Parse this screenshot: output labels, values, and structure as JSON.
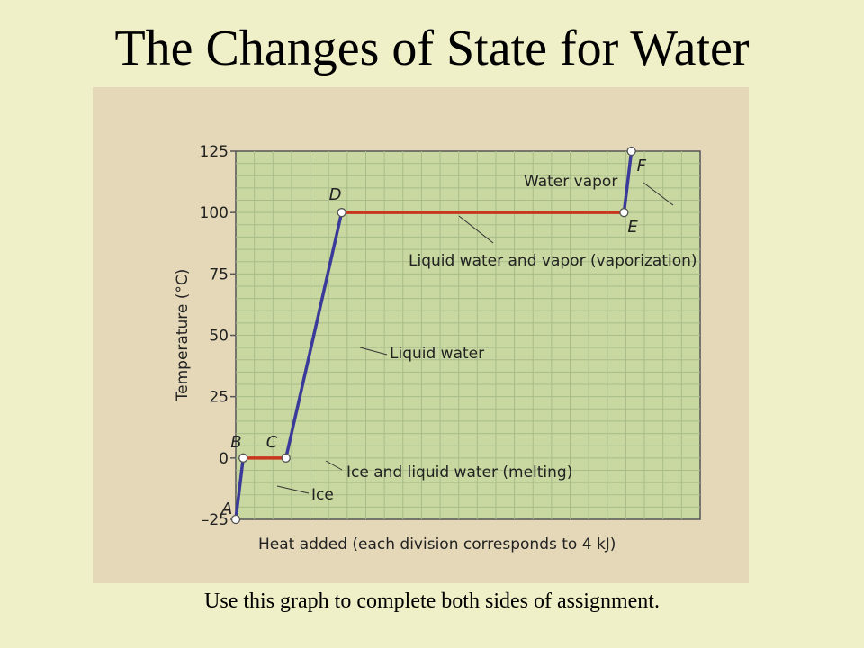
{
  "slide": {
    "title": "The Changes of State for Water",
    "caption": "Use this graph to complete both sides of assignment."
  },
  "chart_data": {
    "type": "line",
    "xlabel": "Heat added (each division corresponds to 4 kJ)",
    "ylabel": "Temperature (°C)",
    "yticks": [
      125,
      100,
      75,
      50,
      25,
      0,
      -25
    ],
    "ytick_labels": [
      "125",
      "100",
      "75",
      "50",
      "25",
      "0",
      "–25"
    ],
    "ylim": [
      -25,
      125
    ],
    "xlim": [
      0,
      25
    ],
    "grid": true,
    "points": [
      {
        "label": "A",
        "x": 0,
        "y": -25
      },
      {
        "label": "B",
        "x": 0.4,
        "y": 0
      },
      {
        "label": "C",
        "x": 2.7,
        "y": 0
      },
      {
        "label": "D",
        "x": 5.7,
        "y": 100
      },
      {
        "label": "E",
        "x": 20.9,
        "y": 100
      },
      {
        "label": "F",
        "x": 21.3,
        "y": 125
      }
    ],
    "segments": [
      {
        "from": "A",
        "to": "B",
        "phase": "heating",
        "annotation": "Ice"
      },
      {
        "from": "B",
        "to": "C",
        "phase": "transition",
        "annotation": "Ice and liquid water (melting)"
      },
      {
        "from": "C",
        "to": "D",
        "phase": "heating",
        "annotation": "Liquid water"
      },
      {
        "from": "D",
        "to": "E",
        "phase": "transition",
        "annotation": "Liquid water and vapor (vaporization)"
      },
      {
        "from": "E",
        "to": "F",
        "phase": "heating",
        "annotation": "Water vapor"
      }
    ],
    "colors": {
      "heating": "#3a3a9a",
      "transition": "#c8361e",
      "plot_bg": "#c8d8a0",
      "grid": "#a9bc8a"
    }
  }
}
